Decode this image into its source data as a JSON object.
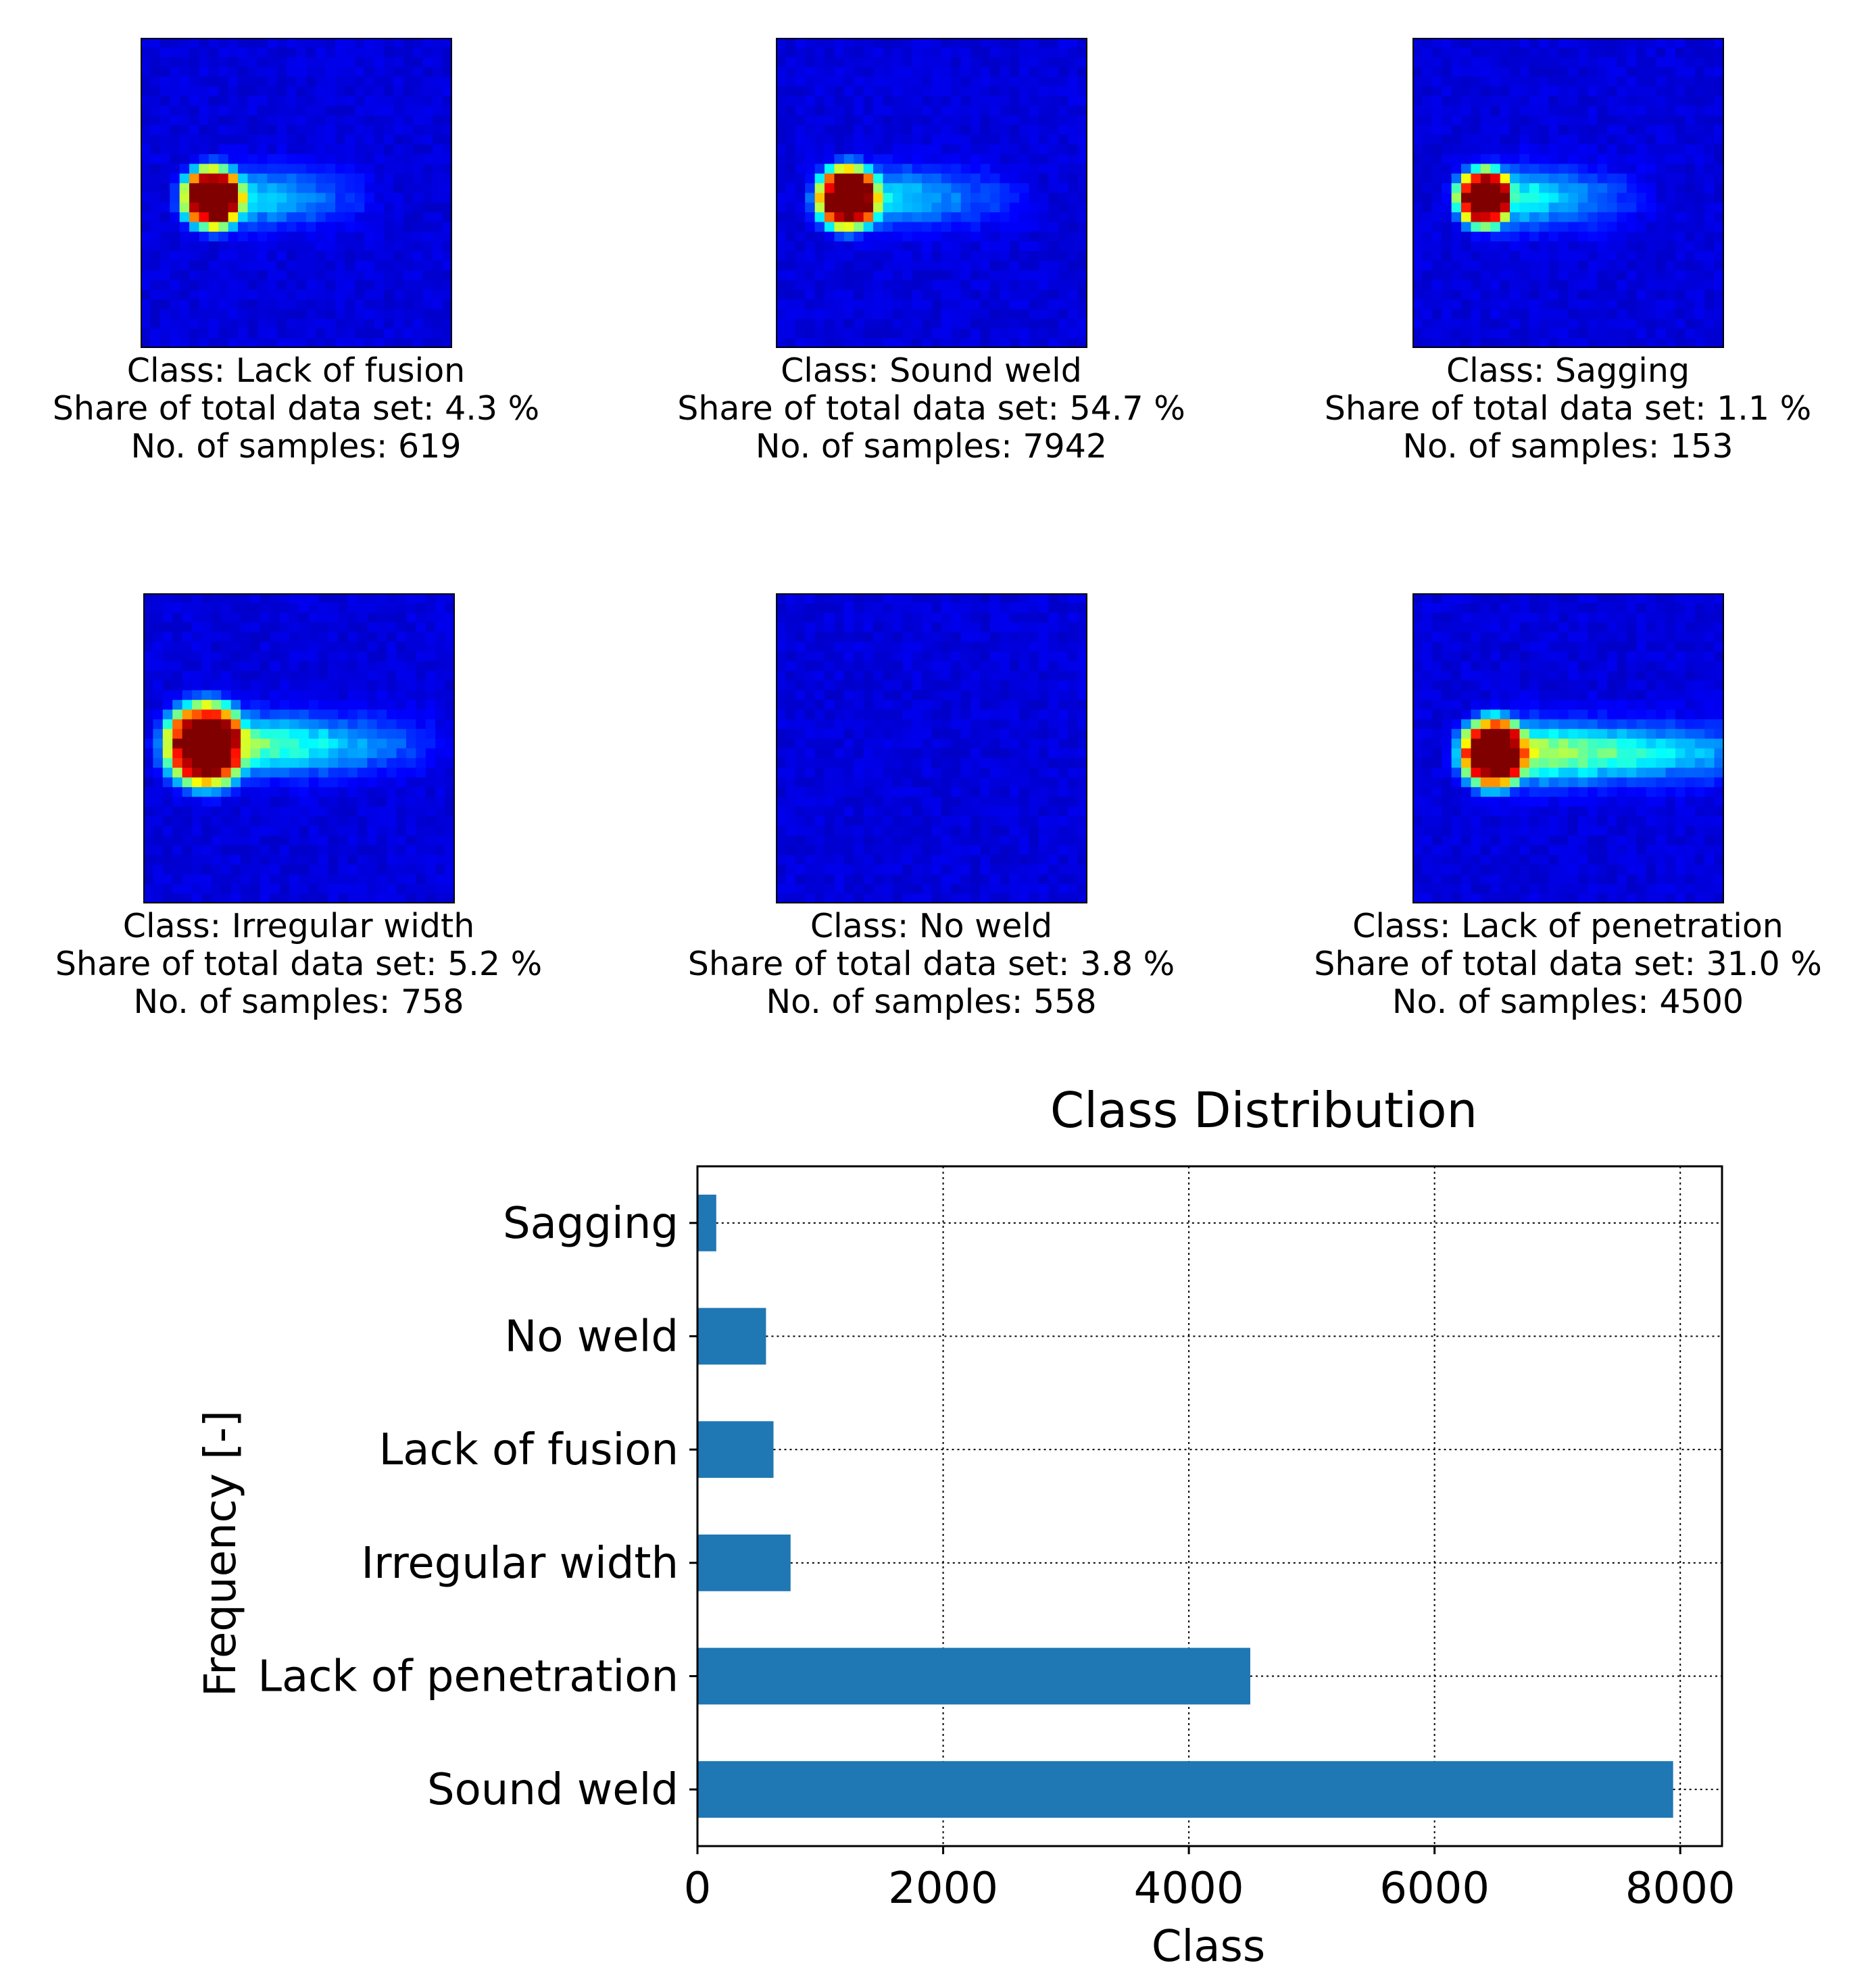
{
  "colors": {
    "bar": "#1f77b4",
    "heatmap_background": "#00008f"
  },
  "panels": [
    {
      "id": "lack-of-fusion",
      "class_line": "Class: Lack of fusion",
      "share_line": "Share of total data set: 4.3 %",
      "samples_line": "No. of samples: 619",
      "heatmap": {
        "center_col": 7,
        "center_row": 19,
        "core_radius": 3.2,
        "tail_length": 18,
        "tail_intensity": 0.35
      }
    },
    {
      "id": "sound-weld",
      "class_line": "Class: Sound weld",
      "share_line": "Share of total data set: 54.7 %",
      "samples_line": "No. of samples: 7942",
      "heatmap": {
        "center_col": 7,
        "center_row": 19,
        "core_radius": 3.3,
        "tail_length": 20,
        "tail_intensity": 0.35
      }
    },
    {
      "id": "sagging",
      "class_line": "Class: Sagging",
      "share_line": "Share of total data set: 1.1 %",
      "samples_line": "No. of samples: 153",
      "heatmap": {
        "center_col": 7,
        "center_row": 19,
        "core_radius": 3.0,
        "tail_length": 18,
        "tail_intensity": 0.4
      }
    },
    {
      "id": "irregular-width",
      "class_line": "Class: Irregular width",
      "share_line": "Share of total data set: 5.2 %",
      "samples_line": "No. of samples: 758",
      "heatmap": {
        "center_col": 6,
        "center_row": 18,
        "core_radius": 4.3,
        "tail_length": 26,
        "tail_intensity": 0.5
      }
    },
    {
      "id": "no-weld",
      "class_line": "Class: No weld",
      "share_line": "Share of total data set: 3.8 %",
      "samples_line": "No. of samples: 558",
      "heatmap": {
        "center_col": 7,
        "center_row": 19,
        "core_radius": 0,
        "tail_length": 0,
        "tail_intensity": 0.0
      }
    },
    {
      "id": "lack-of-penetration",
      "class_line": "Class: Lack of penetration",
      "share_line": "Share of total data set: 31.0 %",
      "samples_line": "No. of samples: 4500",
      "heatmap": {
        "center_col": 8,
        "center_row": 19,
        "core_radius": 3.6,
        "tail_length": 34,
        "tail_intensity": 0.55
      }
    }
  ],
  "chart_data": {
    "type": "bar",
    "orientation": "horizontal",
    "title": "Class Distribution",
    "xlabel": "Class",
    "ylabel": "Frequency [-]",
    "categories": [
      "Sound weld",
      "Lack of penetration",
      "Irregular width",
      "Lack of fusion",
      "No weld",
      "Sagging"
    ],
    "values": [
      7942,
      4500,
      758,
      619,
      558,
      153
    ],
    "xlim": [
      0,
      8340
    ],
    "xticks": [
      0,
      2000,
      4000,
      6000,
      8000
    ],
    "xtick_labels": [
      "0",
      "2000",
      "4000",
      "6000",
      "8000"
    ],
    "grid": true
  }
}
